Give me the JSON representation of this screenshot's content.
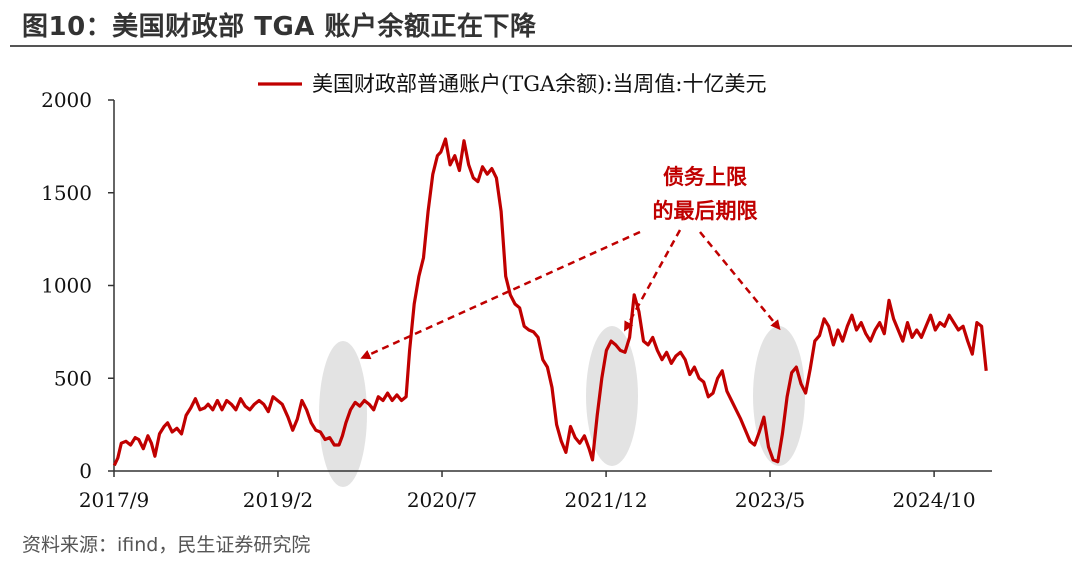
{
  "figure": {
    "title": "图10：美国财政部 TGA 账户余额正在下降",
    "source": "资料来源：ifind，民生证券研究院"
  },
  "chart_data": {
    "type": "line",
    "title": "",
    "xlabel": "",
    "ylabel": "",
    "ylim": [
      0,
      2000
    ],
    "yticks": [
      "0",
      "500",
      "1000",
      "1500",
      "2000"
    ],
    "xticks": [
      {
        "label": "2017/9",
        "t": 2017.667
      },
      {
        "label": "2019/2",
        "t": 2019.083
      },
      {
        "label": "2020/7",
        "t": 2020.5
      },
      {
        "label": "2021/12",
        "t": 2021.917
      },
      {
        "label": "2023/5",
        "t": 2023.333
      },
      {
        "label": "2024/10",
        "t": 2024.75
      }
    ],
    "xlim": [
      2017.667,
      2025.25
    ],
    "grid": false,
    "legend_position": "top",
    "series_color": "#c00000",
    "series": [
      {
        "name": "美国财政部普通账户(TGA余额):当周值:十亿美元",
        "points": [
          [
            2017.67,
            30
          ],
          [
            2017.7,
            70
          ],
          [
            2017.73,
            150
          ],
          [
            2017.77,
            160
          ],
          [
            2017.81,
            140
          ],
          [
            2017.85,
            180
          ],
          [
            2017.88,
            170
          ],
          [
            2017.92,
            120
          ],
          [
            2017.96,
            190
          ],
          [
            2017.99,
            150
          ],
          [
            2018.02,
            80
          ],
          [
            2018.06,
            200
          ],
          [
            2018.1,
            240
          ],
          [
            2018.13,
            260
          ],
          [
            2018.17,
            210
          ],
          [
            2018.21,
            230
          ],
          [
            2018.25,
            200
          ],
          [
            2018.29,
            300
          ],
          [
            2018.33,
            340
          ],
          [
            2018.37,
            390
          ],
          [
            2018.41,
            330
          ],
          [
            2018.45,
            340
          ],
          [
            2018.48,
            360
          ],
          [
            2018.52,
            330
          ],
          [
            2018.56,
            380
          ],
          [
            2018.6,
            330
          ],
          [
            2018.64,
            380
          ],
          [
            2018.68,
            360
          ],
          [
            2018.72,
            330
          ],
          [
            2018.76,
            390
          ],
          [
            2018.8,
            350
          ],
          [
            2018.84,
            330
          ],
          [
            2018.88,
            360
          ],
          [
            2018.92,
            380
          ],
          [
            2018.96,
            360
          ],
          [
            2019.0,
            320
          ],
          [
            2019.04,
            400
          ],
          [
            2019.08,
            380
          ],
          [
            2019.12,
            360
          ],
          [
            2019.17,
            290
          ],
          [
            2019.21,
            220
          ],
          [
            2019.25,
            280
          ],
          [
            2019.29,
            380
          ],
          [
            2019.33,
            330
          ],
          [
            2019.37,
            260
          ],
          [
            2019.41,
            220
          ],
          [
            2019.45,
            210
          ],
          [
            2019.49,
            170
          ],
          [
            2019.53,
            180
          ],
          [
            2019.57,
            140
          ],
          [
            2019.61,
            140
          ],
          [
            2019.64,
            190
          ],
          [
            2019.67,
            260
          ],
          [
            2019.71,
            330
          ],
          [
            2019.75,
            370
          ],
          [
            2019.79,
            350
          ],
          [
            2019.83,
            380
          ],
          [
            2019.87,
            360
          ],
          [
            2019.91,
            330
          ],
          [
            2019.95,
            400
          ],
          [
            2019.99,
            380
          ],
          [
            2020.03,
            420
          ],
          [
            2020.07,
            380
          ],
          [
            2020.11,
            410
          ],
          [
            2020.15,
            380
          ],
          [
            2020.19,
            400
          ],
          [
            2020.22,
            650
          ],
          [
            2020.26,
            900
          ],
          [
            2020.3,
            1050
          ],
          [
            2020.34,
            1150
          ],
          [
            2020.38,
            1400
          ],
          [
            2020.42,
            1600
          ],
          [
            2020.46,
            1700
          ],
          [
            2020.49,
            1720
          ],
          [
            2020.53,
            1790
          ],
          [
            2020.57,
            1650
          ],
          [
            2020.61,
            1700
          ],
          [
            2020.65,
            1620
          ],
          [
            2020.69,
            1780
          ],
          [
            2020.73,
            1650
          ],
          [
            2020.77,
            1580
          ],
          [
            2020.81,
            1560
          ],
          [
            2020.85,
            1640
          ],
          [
            2020.89,
            1600
          ],
          [
            2020.93,
            1630
          ],
          [
            2020.97,
            1580
          ],
          [
            2021.01,
            1400
          ],
          [
            2021.05,
            1050
          ],
          [
            2021.09,
            950
          ],
          [
            2021.13,
            900
          ],
          [
            2021.17,
            880
          ],
          [
            2021.21,
            780
          ],
          [
            2021.25,
            760
          ],
          [
            2021.29,
            750
          ],
          [
            2021.33,
            720
          ],
          [
            2021.37,
            600
          ],
          [
            2021.41,
            560
          ],
          [
            2021.45,
            450
          ],
          [
            2021.49,
            250
          ],
          [
            2021.53,
            160
          ],
          [
            2021.57,
            100
          ],
          [
            2021.61,
            240
          ],
          [
            2021.65,
            180
          ],
          [
            2021.69,
            150
          ],
          [
            2021.73,
            190
          ],
          [
            2021.77,
            120
          ],
          [
            2021.8,
            60
          ],
          [
            2021.84,
            300
          ],
          [
            2021.88,
            500
          ],
          [
            2021.92,
            650
          ],
          [
            2021.96,
            700
          ],
          [
            2022.0,
            680
          ],
          [
            2022.04,
            650
          ],
          [
            2022.08,
            640
          ],
          [
            2022.12,
            720
          ],
          [
            2022.16,
            950
          ],
          [
            2022.2,
            860
          ],
          [
            2022.24,
            700
          ],
          [
            2022.28,
            680
          ],
          [
            2022.32,
            720
          ],
          [
            2022.36,
            650
          ],
          [
            2022.4,
            600
          ],
          [
            2022.44,
            640
          ],
          [
            2022.48,
            580
          ],
          [
            2022.52,
            620
          ],
          [
            2022.56,
            640
          ],
          [
            2022.6,
            600
          ],
          [
            2022.64,
            520
          ],
          [
            2022.68,
            560
          ],
          [
            2022.72,
            500
          ],
          [
            2022.76,
            480
          ],
          [
            2022.8,
            400
          ],
          [
            2022.84,
            420
          ],
          [
            2022.88,
            500
          ],
          [
            2022.92,
            540
          ],
          [
            2022.96,
            430
          ],
          [
            2023.0,
            380
          ],
          [
            2023.04,
            330
          ],
          [
            2023.08,
            280
          ],
          [
            2023.12,
            220
          ],
          [
            2023.16,
            160
          ],
          [
            2023.2,
            140
          ],
          [
            2023.24,
            210
          ],
          [
            2023.28,
            290
          ],
          [
            2023.32,
            130
          ],
          [
            2023.36,
            60
          ],
          [
            2023.4,
            50
          ],
          [
            2023.44,
            200
          ],
          [
            2023.48,
            400
          ],
          [
            2023.52,
            530
          ],
          [
            2023.56,
            560
          ],
          [
            2023.6,
            470
          ],
          [
            2023.64,
            420
          ],
          [
            2023.68,
            550
          ],
          [
            2023.72,
            700
          ],
          [
            2023.76,
            730
          ],
          [
            2023.8,
            820
          ],
          [
            2023.84,
            780
          ],
          [
            2023.88,
            680
          ],
          [
            2023.92,
            760
          ],
          [
            2023.96,
            700
          ],
          [
            2024.0,
            780
          ],
          [
            2024.04,
            840
          ],
          [
            2024.08,
            760
          ],
          [
            2024.12,
            800
          ],
          [
            2024.16,
            740
          ],
          [
            2024.2,
            700
          ],
          [
            2024.24,
            760
          ],
          [
            2024.28,
            800
          ],
          [
            2024.32,
            740
          ],
          [
            2024.36,
            920
          ],
          [
            2024.4,
            820
          ],
          [
            2024.44,
            760
          ],
          [
            2024.48,
            700
          ],
          [
            2024.52,
            800
          ],
          [
            2024.56,
            720
          ],
          [
            2024.6,
            760
          ],
          [
            2024.64,
            720
          ],
          [
            2024.68,
            780
          ],
          [
            2024.72,
            840
          ],
          [
            2024.76,
            760
          ],
          [
            2024.8,
            800
          ],
          [
            2024.84,
            780
          ],
          [
            2024.88,
            840
          ],
          [
            2024.92,
            800
          ],
          [
            2024.96,
            760
          ],
          [
            2025.0,
            780
          ],
          [
            2025.04,
            700
          ],
          [
            2025.08,
            630
          ],
          [
            2025.12,
            800
          ],
          [
            2025.16,
            780
          ],
          [
            2025.2,
            540
          ]
        ]
      }
    ],
    "annotation": {
      "text_line1": "债务上限",
      "text_line2": "的最后期限"
    }
  }
}
